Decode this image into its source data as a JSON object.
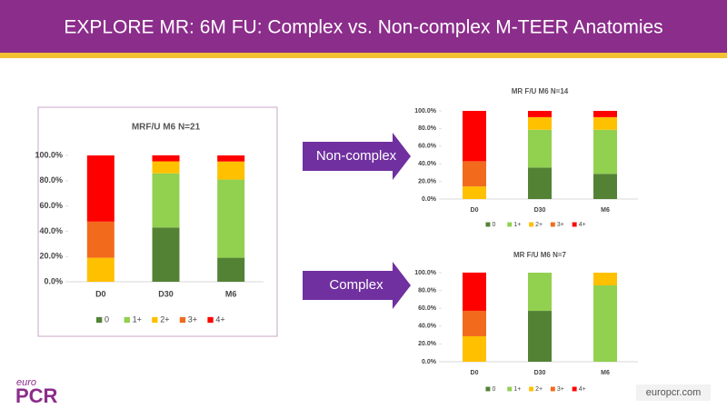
{
  "title": "EXPLORE MR: 6M FU:  Complex vs. Non-complex M-TEER Anatomies",
  "arrows": [
    "Non-complex",
    "Complex"
  ],
  "logo": {
    "top": "euro",
    "main": "PCR"
  },
  "footer": "europcr.com",
  "chart_data": [
    {
      "type": "stacked-bar",
      "title": "MRF/U M6   N=21",
      "categories": [
        "D0",
        "D30",
        "M6"
      ],
      "series": [
        {
          "name": "0",
          "color": "#548235",
          "values": [
            0,
            42.9,
            19.0
          ]
        },
        {
          "name": "1+",
          "color": "#92d050",
          "values": [
            0,
            42.9,
            61.9
          ]
        },
        {
          "name": "2+",
          "color": "#ffc000",
          "values": [
            19.0,
            9.5,
            14.3
          ]
        },
        {
          "name": "3+",
          "color": "#f26b1d",
          "values": [
            28.6,
            0,
            0
          ]
        },
        {
          "name": "4+",
          "color": "#ff0000",
          "values": [
            52.4,
            4.8,
            4.8
          ]
        }
      ],
      "ylim": [
        0,
        100
      ],
      "yticks": [
        {
          "value": 0,
          "label": "0.0%"
        },
        {
          "value": 20,
          "label": "20.0%"
        },
        {
          "value": 40,
          "label": "40.0%"
        },
        {
          "value": 60,
          "label": "60.0%"
        },
        {
          "value": 80,
          "label": "80.0%"
        },
        {
          "value": 100,
          "label": "100.0%"
        }
      ],
      "legend": "bottom"
    },
    {
      "type": "stacked-bar",
      "title": "MR F/U M6   N=14",
      "categories": [
        "D0",
        "D30",
        "M6"
      ],
      "series": [
        {
          "name": "0",
          "color": "#548235",
          "values": [
            0,
            35.7,
            28.6
          ]
        },
        {
          "name": "1+",
          "color": "#92d050",
          "values": [
            0,
            42.9,
            50.0
          ]
        },
        {
          "name": "2+",
          "color": "#ffc000",
          "values": [
            14.3,
            14.3,
            14.3
          ]
        },
        {
          "name": "3+",
          "color": "#f26b1d",
          "values": [
            28.6,
            0,
            0
          ]
        },
        {
          "name": "4+",
          "color": "#ff0000",
          "values": [
            57.1,
            7.1,
            7.1
          ]
        }
      ],
      "ylim": [
        0,
        100
      ],
      "yticks": [
        {
          "value": 0,
          "label": "0.0%"
        },
        {
          "value": 20,
          "label": "20.0%"
        },
        {
          "value": 40,
          "label": "40.0%"
        },
        {
          "value": 60,
          "label": "60.0%"
        },
        {
          "value": 80,
          "label": "80.0%"
        },
        {
          "value": 100,
          "label": "100.0%"
        }
      ],
      "legend": "bottom"
    },
    {
      "type": "stacked-bar",
      "title": "MR F/U M6   N=7",
      "categories": [
        "D0",
        "D30",
        "M6"
      ],
      "series": [
        {
          "name": "0",
          "color": "#548235",
          "values": [
            0,
            57.1,
            0
          ]
        },
        {
          "name": "1+",
          "color": "#92d050",
          "values": [
            0,
            42.9,
            85.7
          ]
        },
        {
          "name": "2+",
          "color": "#ffc000",
          "values": [
            28.6,
            0,
            14.3
          ]
        },
        {
          "name": "3+",
          "color": "#f26b1d",
          "values": [
            28.6,
            0,
            0
          ]
        },
        {
          "name": "4+",
          "color": "#ff0000",
          "values": [
            42.9,
            0,
            0
          ]
        }
      ],
      "ylim": [
        0,
        100
      ],
      "yticks": [
        {
          "value": 0,
          "label": "0.0%"
        },
        {
          "value": 20,
          "label": "20.0%"
        },
        {
          "value": 40,
          "label": "40.0%"
        },
        {
          "value": 60,
          "label": "60.0%"
        },
        {
          "value": 80,
          "label": "80.0%"
        },
        {
          "value": 100,
          "label": "100.0%"
        }
      ],
      "legend": "bottom"
    }
  ]
}
